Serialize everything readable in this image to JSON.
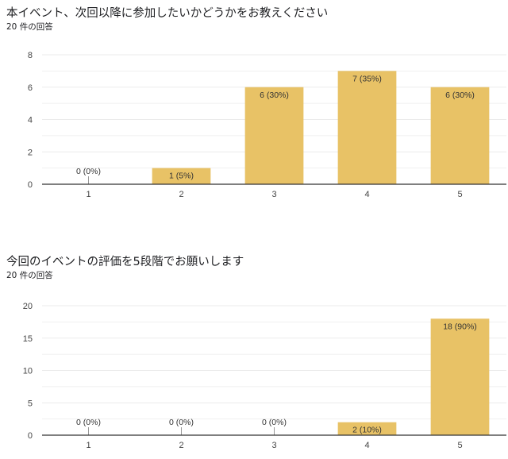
{
  "charts": [
    {
      "title": "本イベント、次回以降に参加したいかどうかをお教えください",
      "response_count": "20 件の回答"
    },
    {
      "title": "今回のイベントの評価を5段階でお願いします",
      "response_count": "20 件の回答"
    }
  ],
  "colors": {
    "bar": "#e8c266",
    "grid": "#ebebeb",
    "axis": "#333333",
    "tick_text": "#444444"
  },
  "chart_data": [
    {
      "type": "bar",
      "title": "本イベント、次回以降に参加したいかどうかをお教えください",
      "subtitle": "20 件の回答",
      "categories": [
        "1",
        "2",
        "3",
        "4",
        "5"
      ],
      "values": [
        0,
        1,
        6,
        7,
        6
      ],
      "data_labels": [
        "0 (0%)",
        "1 (5%)",
        "6 (30%)",
        "7 (35%)",
        "6 (30%)"
      ],
      "y_ticks": [
        0,
        2,
        4,
        6,
        8
      ],
      "ylim": [
        0,
        8
      ],
      "grid": true
    },
    {
      "type": "bar",
      "title": "今回のイベントの評価を5段階でお願いします",
      "subtitle": "20 件の回答",
      "categories": [
        "1",
        "2",
        "3",
        "4",
        "5"
      ],
      "values": [
        0,
        0,
        0,
        2,
        18
      ],
      "data_labels": [
        "0 (0%)",
        "0 (0%)",
        "0 (0%)",
        "2 (10%)",
        "18 (90%)"
      ],
      "y_ticks": [
        0,
        5,
        10,
        15,
        20
      ],
      "ylim": [
        0,
        20
      ],
      "grid": true
    }
  ]
}
